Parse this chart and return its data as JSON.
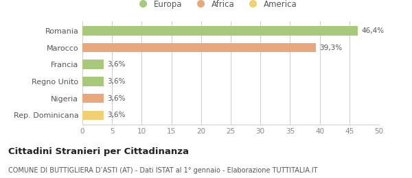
{
  "categories": [
    "Romania",
    "Marocco",
    "Francia",
    "Regno Unito",
    "Nigeria",
    "Rep. Dominicana"
  ],
  "values": [
    46.4,
    39.3,
    3.6,
    3.6,
    3.6,
    3.6
  ],
  "colors": [
    "#a8c87a",
    "#e8a87c",
    "#a8c87a",
    "#a8c87a",
    "#e8a87c",
    "#f0d070"
  ],
  "labels": [
    "46,4%",
    "39,3%",
    "3,6%",
    "3,6%",
    "3,6%",
    "3,6%"
  ],
  "legend": [
    {
      "label": "Europa",
      "color": "#a8c87a"
    },
    {
      "label": "Africa",
      "color": "#e8a87c"
    },
    {
      "label": "America",
      "color": "#f0d070"
    }
  ],
  "xlim": [
    0,
    50
  ],
  "xticks": [
    0,
    5,
    10,
    15,
    20,
    25,
    30,
    35,
    40,
    45,
    50
  ],
  "title": "Cittadini Stranieri per Cittadinanza",
  "subtitle": "COMUNE DI BUTTIGLIERA D’ASTI (AT) - Dati ISTAT al 1° gennaio - Elaborazione TUTTITALIA.IT",
  "background_color": "#ffffff",
  "grid_color": "#cccccc",
  "bar_height": 0.55
}
